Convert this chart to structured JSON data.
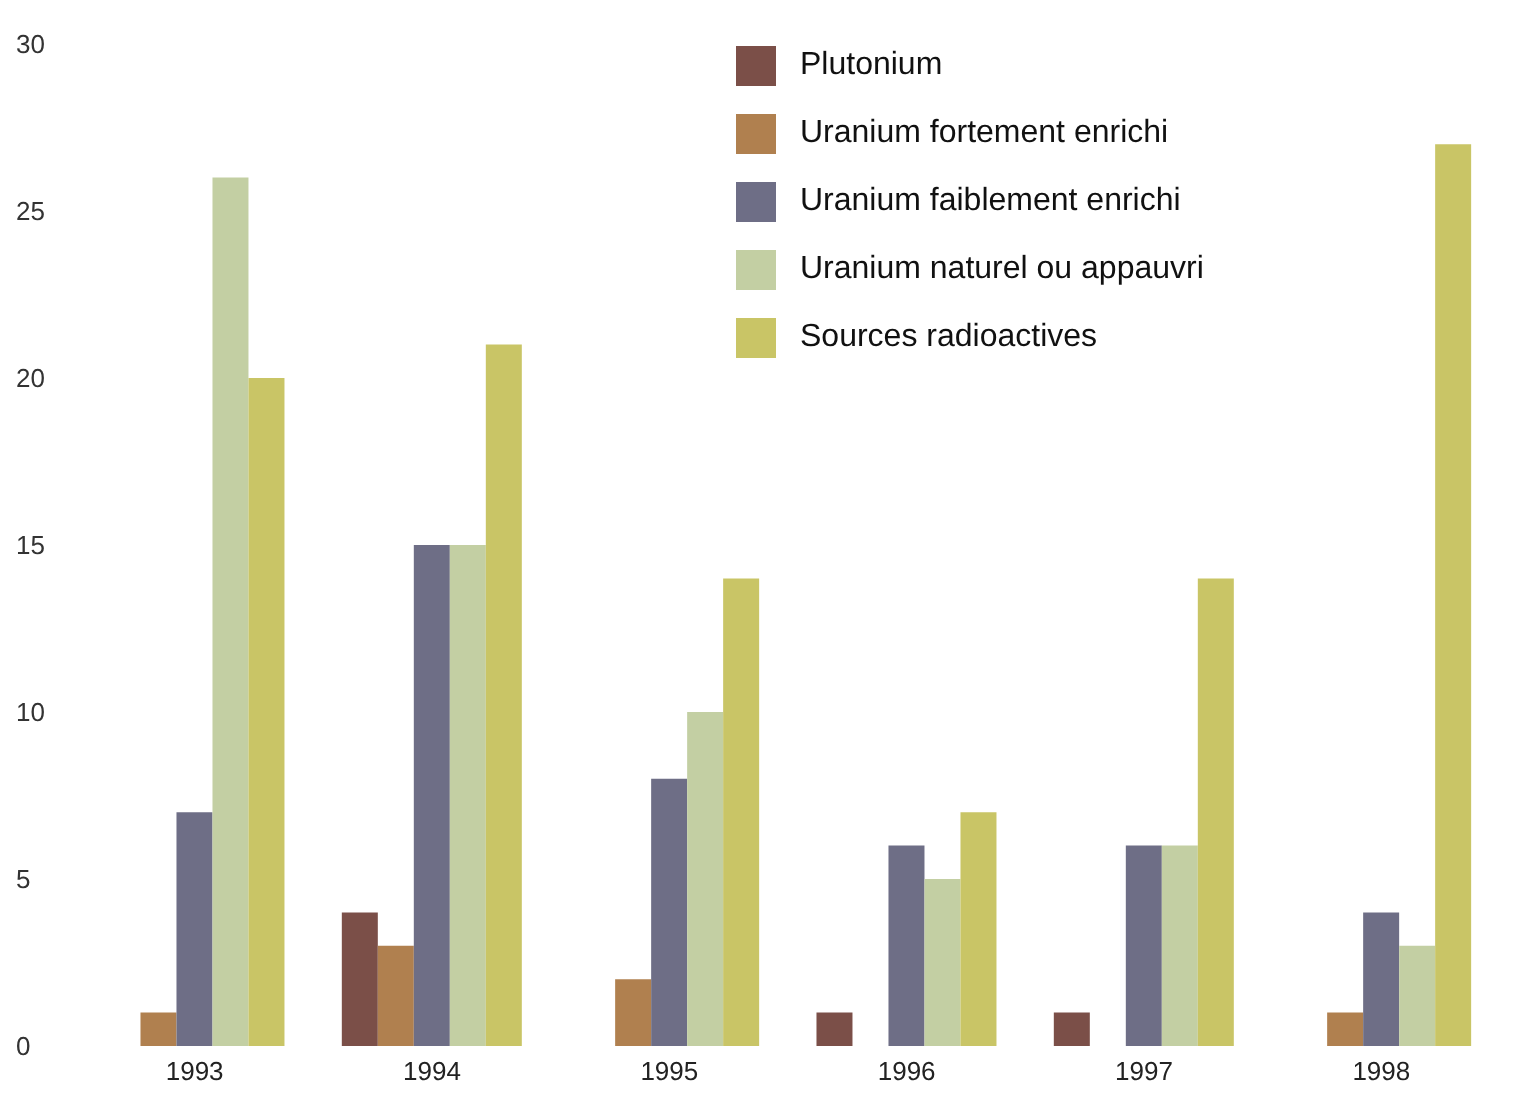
{
  "chart_data": {
    "type": "bar",
    "categories": [
      "1993",
      "1994",
      "1995",
      "1996",
      "1997",
      "1998"
    ],
    "series": [
      {
        "name": "Plutonium",
        "color": "#7b4f48",
        "values": [
          0,
          4,
          0,
          1,
          1,
          0
        ]
      },
      {
        "name": "Uranium fortement enrichi",
        "color": "#b0804f",
        "values": [
          1,
          3,
          2,
          0,
          0,
          1
        ]
      },
      {
        "name": "Uranium faiblement enrichi",
        "color": "#6e6e86",
        "values": [
          7,
          15,
          8,
          6,
          6,
          4
        ]
      },
      {
        "name": "Uranium naturel ou appauvri",
        "color": "#c3cfa3",
        "values": [
          26,
          15,
          10,
          5,
          6,
          3
        ]
      },
      {
        "name": "Sources radioactives",
        "color": "#c9c566",
        "values": [
          20,
          21,
          14,
          7,
          14,
          27
        ]
      }
    ],
    "ylim": [
      0,
      30
    ],
    "yticks": [
      0,
      5,
      10,
      15,
      20,
      25,
      30
    ],
    "grid": false,
    "legend": "top right"
  }
}
